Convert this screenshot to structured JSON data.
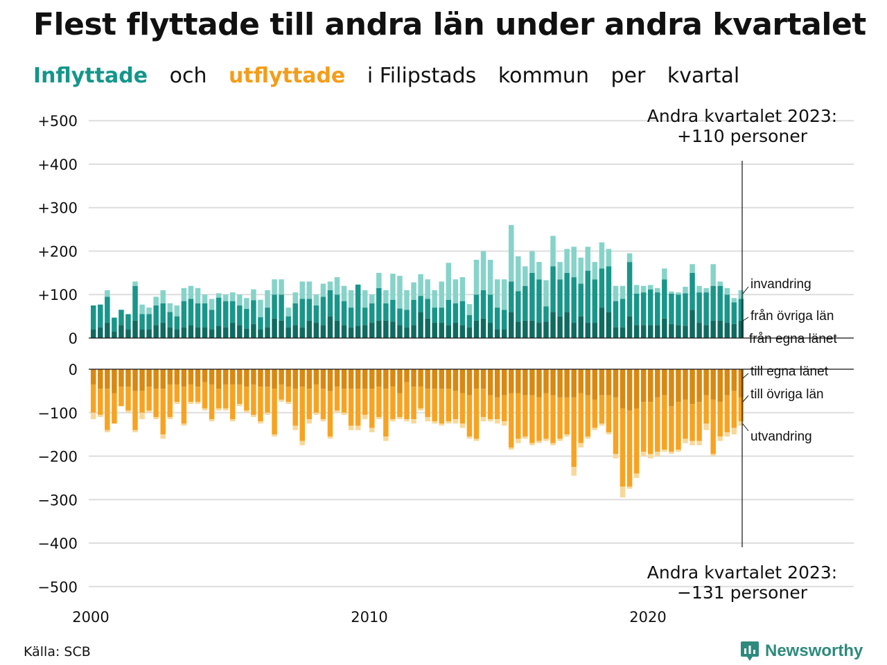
{
  "title": "Flest flyttade till andra län under andra kvartalet",
  "subtitle": {
    "part1": "Inflyttade",
    "part2": "och",
    "part3": "utflyttade",
    "part4": "i Filipstads",
    "part5": "kommun",
    "part6": "per",
    "part7": "kvartal"
  },
  "annotations": {
    "top_line1": "Andra kvartalet 2023:",
    "top_line2": "+110 personer",
    "bottom_line1": "Andra kvartalet 2023:",
    "bottom_line2": "−131 personer"
  },
  "series_labels": {
    "in_immigration": "invandring",
    "in_other": "från övriga län",
    "in_own": "från egna länet",
    "out_own": "till egna länet",
    "out_other": "till övriga län",
    "out_emigration": "utvandring"
  },
  "source": "Källa: SCB",
  "brand": "Newsworthy",
  "colors": {
    "in_own": "#0f6b60",
    "in_other": "#18968a",
    "in_immigration": "#86d3c9",
    "out_own": "#d98810",
    "out_other": "#f7a321",
    "out_emigration": "#f8d89a",
    "in_title": "#14968a",
    "out_title": "#f49d1a",
    "grid": "#dddddd",
    "brand": "#2d8a7c"
  },
  "chart_data": {
    "type": "bar",
    "stacked": true,
    "x_start": "2000 Q1",
    "x_end": "2023 Q2",
    "x_ticks": [
      "2000",
      "2010",
      "2020"
    ],
    "top_panel": {
      "y_ticks": [
        "+500",
        "+400",
        "+300",
        "+200",
        "+100",
        "0"
      ],
      "ylim": [
        0,
        500
      ],
      "series": [
        {
          "name": "från egna länet",
          "values": [
            20,
            25,
            35,
            15,
            30,
            20,
            40,
            20,
            20,
            30,
            35,
            25,
            20,
            25,
            30,
            25,
            25,
            20,
            28,
            25,
            35,
            30,
            22,
            32,
            20,
            25,
            45,
            40,
            25,
            30,
            25,
            40,
            35,
            30,
            50,
            40,
            30,
            25,
            28,
            30,
            35,
            40,
            40,
            38,
            30,
            25,
            30,
            60,
            45,
            35,
            35,
            30,
            35,
            30,
            25,
            40,
            45,
            35,
            20,
            20,
            60,
            38,
            40,
            40,
            35,
            38,
            60,
            50,
            60,
            35,
            50,
            35,
            35,
            70,
            60,
            25,
            25,
            50,
            30,
            30,
            30,
            30,
            45,
            32,
            30,
            28,
            65,
            35,
            30,
            40,
            40,
            35,
            32,
            40
          ]
        },
        {
          "name": "från övriga län",
          "values": [
            55,
            52,
            60,
            32,
            35,
            35,
            80,
            35,
            35,
            45,
            45,
            35,
            30,
            60,
            60,
            55,
            55,
            45,
            65,
            60,
            50,
            45,
            45,
            55,
            28,
            45,
            55,
            60,
            25,
            50,
            65,
            50,
            40,
            65,
            60,
            60,
            55,
            45,
            95,
            40,
            45,
            75,
            40,
            50,
            38,
            40,
            58,
            37,
            45,
            35,
            35,
            58,
            45,
            55,
            28,
            60,
            65,
            65,
            50,
            45,
            70,
            70,
            80,
            110,
            100,
            35,
            105,
            85,
            90,
            105,
            75,
            120,
            100,
            90,
            105,
            60,
            65,
            125,
            72,
            75,
            82,
            75,
            90,
            70,
            70,
            75,
            85,
            70,
            75,
            80,
            80,
            65,
            50,
            50
          ]
        },
        {
          "name": "invandring",
          "values": [
            0,
            0,
            15,
            0,
            0,
            0,
            10,
            22,
            15,
            20,
            30,
            20,
            25,
            30,
            30,
            35,
            20,
            25,
            10,
            15,
            20,
            25,
            25,
            25,
            40,
            40,
            35,
            35,
            20,
            25,
            40,
            40,
            25,
            30,
            20,
            40,
            35,
            40,
            0,
            40,
            20,
            35,
            30,
            60,
            75,
            45,
            40,
            50,
            45,
            40,
            60,
            85,
            55,
            55,
            25,
            80,
            90,
            80,
            65,
            70,
            130,
            80,
            45,
            50,
            40,
            60,
            70,
            40,
            55,
            70,
            60,
            55,
            40,
            60,
            40,
            35,
            30,
            20,
            20,
            15,
            10,
            10,
            25,
            5,
            5,
            15,
            20,
            15,
            10,
            50,
            10,
            15,
            10,
            20
          ]
        }
      ]
    },
    "bottom_panel": {
      "y_ticks": [
        "0",
        "−100",
        "−200",
        "−300",
        "−400",
        "−500"
      ],
      "ylim": [
        -500,
        0
      ],
      "series": [
        {
          "name": "till egna länet",
          "values": [
            -35,
            -45,
            -45,
            -55,
            -40,
            -40,
            -50,
            -50,
            -40,
            -45,
            -45,
            -35,
            -35,
            -40,
            -35,
            -40,
            -30,
            -35,
            -45,
            -35,
            -35,
            -35,
            -40,
            -35,
            -40,
            -40,
            -45,
            -35,
            -40,
            -45,
            -40,
            -45,
            -35,
            -45,
            -50,
            -40,
            -45,
            -45,
            -45,
            -45,
            -45,
            -40,
            -45,
            -40,
            -55,
            -30,
            -40,
            -40,
            -45,
            -45,
            -45,
            -45,
            -50,
            -55,
            -60,
            -45,
            -45,
            -60,
            -65,
            -60,
            -55,
            -55,
            -60,
            -60,
            -65,
            -55,
            -60,
            -65,
            -65,
            -65,
            -55,
            -60,
            -70,
            -60,
            -60,
            -65,
            -90,
            -95,
            -90,
            -75,
            -75,
            -65,
            -60,
            -85,
            -75,
            -70,
            -80,
            -75,
            -60,
            -70,
            -75,
            -60,
            -50,
            -65
          ]
        },
        {
          "name": "till övriga län",
          "values": [
            -65,
            -60,
            -95,
            -70,
            -45,
            -55,
            -90,
            -50,
            -55,
            -65,
            -105,
            -75,
            -40,
            -85,
            -40,
            -35,
            -60,
            -80,
            -45,
            -55,
            -80,
            -45,
            -55,
            -70,
            -80,
            -60,
            -105,
            -35,
            -35,
            -85,
            -125,
            -70,
            -65,
            -70,
            -105,
            -55,
            -55,
            -85,
            -85,
            -60,
            -90,
            -70,
            -110,
            -75,
            -55,
            -85,
            -75,
            -50,
            -65,
            -75,
            -80,
            -75,
            -65,
            -70,
            -95,
            -115,
            -65,
            -55,
            -50,
            -60,
            -125,
            -105,
            -95,
            -110,
            -100,
            -105,
            -110,
            -95,
            -85,
            -160,
            -115,
            -95,
            -65,
            -65,
            -85,
            -130,
            -180,
            -175,
            -150,
            -115,
            -120,
            -125,
            -125,
            -105,
            -110,
            -90,
            -85,
            -90,
            -65,
            -125,
            -80,
            -85,
            -85,
            -55
          ]
        },
        {
          "name": "utvandring",
          "values": [
            -15,
            -5,
            -5,
            0,
            0,
            -5,
            -5,
            -15,
            -5,
            -5,
            -10,
            -5,
            -5,
            -5,
            -5,
            -5,
            -5,
            -5,
            -5,
            -5,
            -5,
            -5,
            -5,
            -5,
            -5,
            -5,
            -5,
            -5,
            -5,
            -10,
            -10,
            -10,
            -5,
            -5,
            -5,
            -5,
            -5,
            -10,
            -10,
            -10,
            -10,
            -5,
            -10,
            -5,
            -5,
            -5,
            -10,
            -5,
            -10,
            -5,
            -5,
            -5,
            -10,
            -10,
            -5,
            -5,
            -10,
            -5,
            -10,
            -10,
            -5,
            -10,
            -5,
            -5,
            -5,
            -5,
            -5,
            -5,
            -5,
            -20,
            -10,
            -5,
            -5,
            -5,
            -5,
            -10,
            -25,
            -5,
            -10,
            -10,
            -10,
            -10,
            -5,
            -5,
            -5,
            -10,
            -10,
            -10,
            -15,
            -5,
            -10,
            -10,
            -15,
            -10
          ]
        }
      ]
    }
  }
}
